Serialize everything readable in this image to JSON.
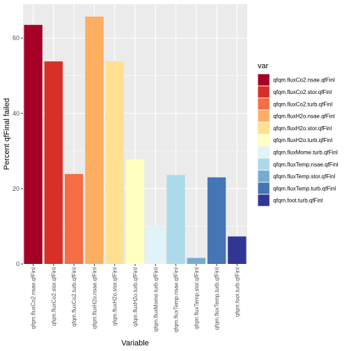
{
  "chart_data": {
    "type": "bar",
    "xlabel": "Variable",
    "ylabel": "Percent qfFinal failed",
    "ylim": [
      0,
      69
    ],
    "yticks": [
      0,
      20,
      40,
      60
    ],
    "grid": true,
    "legend_title": "var",
    "legend_position": "right",
    "categories": [
      "qfqm.fluxCo2.nsae.qfFinl",
      "qfqm.fluxCo2.stor.qfFinl",
      "qfqm.fluxCo2.turb.qfFinl",
      "qfqm.fluxH2o.nsae.qfFinl",
      "qfqm.fluxH2o.stor.qfFinl",
      "qfqm.fluxH2o.turb.qfFinl",
      "qfqm.fluxMome.turb.qfFinl",
      "qfqm.fluxTemp.nsae.qfFinl",
      "qfqm.fluxTemp.stor.qfFinl",
      "qfqm.fluxTemp.turb.qfFinl",
      "qfqm.foot.turb.qfFinl"
    ],
    "values": [
      63.5,
      53.8,
      23.9,
      65.7,
      53.8,
      27.8,
      10.0,
      23.6,
      1.6,
      23.0,
      7.3
    ],
    "colors": [
      "#a50026",
      "#d73027",
      "#f46d43",
      "#fdae61",
      "#fee090",
      "#ffffbf",
      "#e0f3f8",
      "#abd9e9",
      "#74add1",
      "#4575b4",
      "#313695"
    ]
  }
}
